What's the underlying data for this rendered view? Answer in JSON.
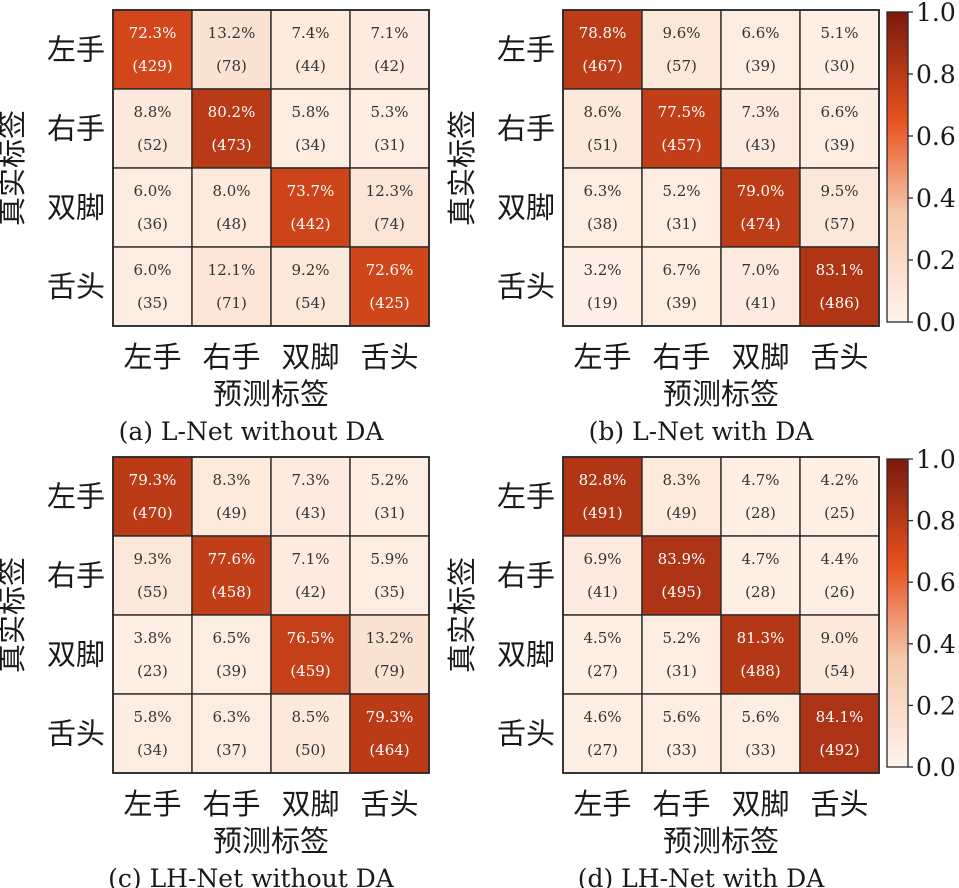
{
  "colorbar": {
    "ticks": [
      "0.0",
      "0.2",
      "0.4",
      "0.6",
      "0.8",
      "1.0"
    ],
    "colors": {
      "low": "#fff4ec",
      "mid": "#e8521f",
      "high": "#7a1a0c"
    }
  },
  "chart_data": [
    {
      "type": "heatmap",
      "caption": "(a) L-Net without DA",
      "xlabel": "预测标签",
      "ylabel": "真实标签",
      "categories": [
        "左手",
        "右手",
        "双脚",
        "舌头"
      ],
      "percent": [
        [
          "72.3%",
          "13.2%",
          "7.4%",
          "7.1%"
        ],
        [
          "8.8%",
          "80.2%",
          "5.8%",
          "5.3%"
        ],
        [
          "6.0%",
          "8.0%",
          "73.7%",
          "12.3%"
        ],
        [
          "6.0%",
          "12.1%",
          "9.2%",
          "72.6%"
        ]
      ],
      "counts": [
        [
          "(429)",
          "(78)",
          "(44)",
          "(42)"
        ],
        [
          "(52)",
          "(473)",
          "(34)",
          "(31)"
        ],
        [
          "(36)",
          "(48)",
          "(442)",
          "(74)"
        ],
        [
          "(35)",
          "(71)",
          "(54)",
          "(425)"
        ]
      ],
      "values": [
        [
          0.723,
          0.132,
          0.074,
          0.071
        ],
        [
          0.088,
          0.802,
          0.058,
          0.053
        ],
        [
          0.06,
          0.08,
          0.737,
          0.123
        ],
        [
          0.06,
          0.121,
          0.092,
          0.726
        ]
      ]
    },
    {
      "type": "heatmap",
      "caption": "(b) L-Net with DA",
      "xlabel": "预测标签",
      "ylabel": "真实标签",
      "categories": [
        "左手",
        "右手",
        "双脚",
        "舌头"
      ],
      "percent": [
        [
          "78.8%",
          "9.6%",
          "6.6%",
          "5.1%"
        ],
        [
          "8.6%",
          "77.5%",
          "7.3%",
          "6.6%"
        ],
        [
          "6.3%",
          "5.2%",
          "79.0%",
          "9.5%"
        ],
        [
          "3.2%",
          "6.7%",
          "7.0%",
          "83.1%"
        ]
      ],
      "counts": [
        [
          "(467)",
          "(57)",
          "(39)",
          "(30)"
        ],
        [
          "(51)",
          "(457)",
          "(43)",
          "(39)"
        ],
        [
          "(38)",
          "(31)",
          "(474)",
          "(57)"
        ],
        [
          "(19)",
          "(39)",
          "(41)",
          "(486)"
        ]
      ],
      "values": [
        [
          0.788,
          0.096,
          0.066,
          0.051
        ],
        [
          0.086,
          0.775,
          0.073,
          0.066
        ],
        [
          0.063,
          0.052,
          0.79,
          0.095
        ],
        [
          0.032,
          0.067,
          0.07,
          0.831
        ]
      ]
    },
    {
      "type": "heatmap",
      "caption": "(c) LH-Net without DA",
      "xlabel": "预测标签",
      "ylabel": "真实标签",
      "categories": [
        "左手",
        "右手",
        "双脚",
        "舌头"
      ],
      "percent": [
        [
          "79.3%",
          "8.3%",
          "7.3%",
          "5.2%"
        ],
        [
          "9.3%",
          "77.6%",
          "7.1%",
          "5.9%"
        ],
        [
          "3.8%",
          "6.5%",
          "76.5%",
          "13.2%"
        ],
        [
          "5.8%",
          "6.3%",
          "8.5%",
          "79.3%"
        ]
      ],
      "counts": [
        [
          "(470)",
          "(49)",
          "(43)",
          "(31)"
        ],
        [
          "(55)",
          "(458)",
          "(42)",
          "(35)"
        ],
        [
          "(23)",
          "(39)",
          "(459)",
          "(79)"
        ],
        [
          "(34)",
          "(37)",
          "(50)",
          "(464)"
        ]
      ],
      "values": [
        [
          0.793,
          0.083,
          0.073,
          0.052
        ],
        [
          0.093,
          0.776,
          0.071,
          0.059
        ],
        [
          0.038,
          0.065,
          0.765,
          0.132
        ],
        [
          0.058,
          0.063,
          0.085,
          0.793
        ]
      ]
    },
    {
      "type": "heatmap",
      "caption": "(d) LH-Net with DA",
      "xlabel": "预测标签",
      "ylabel": "真实标签",
      "categories": [
        "左手",
        "右手",
        "双脚",
        "舌头"
      ],
      "percent": [
        [
          "82.8%",
          "8.3%",
          "4.7%",
          "4.2%"
        ],
        [
          "6.9%",
          "83.9%",
          "4.7%",
          "4.4%"
        ],
        [
          "4.5%",
          "5.2%",
          "81.3%",
          "9.0%"
        ],
        [
          "4.6%",
          "5.6%",
          "5.6%",
          "84.1%"
        ]
      ],
      "counts": [
        [
          "(491)",
          "(49)",
          "(28)",
          "(25)"
        ],
        [
          "(41)",
          "(495)",
          "(28)",
          "(26)"
        ],
        [
          "(27)",
          "(31)",
          "(488)",
          "(54)"
        ],
        [
          "(27)",
          "(33)",
          "(33)",
          "(492)"
        ]
      ],
      "values": [
        [
          0.828,
          0.083,
          0.047,
          0.042
        ],
        [
          0.069,
          0.839,
          0.047,
          0.044
        ],
        [
          0.045,
          0.052,
          0.813,
          0.09
        ],
        [
          0.046,
          0.056,
          0.056,
          0.841
        ]
      ]
    }
  ]
}
